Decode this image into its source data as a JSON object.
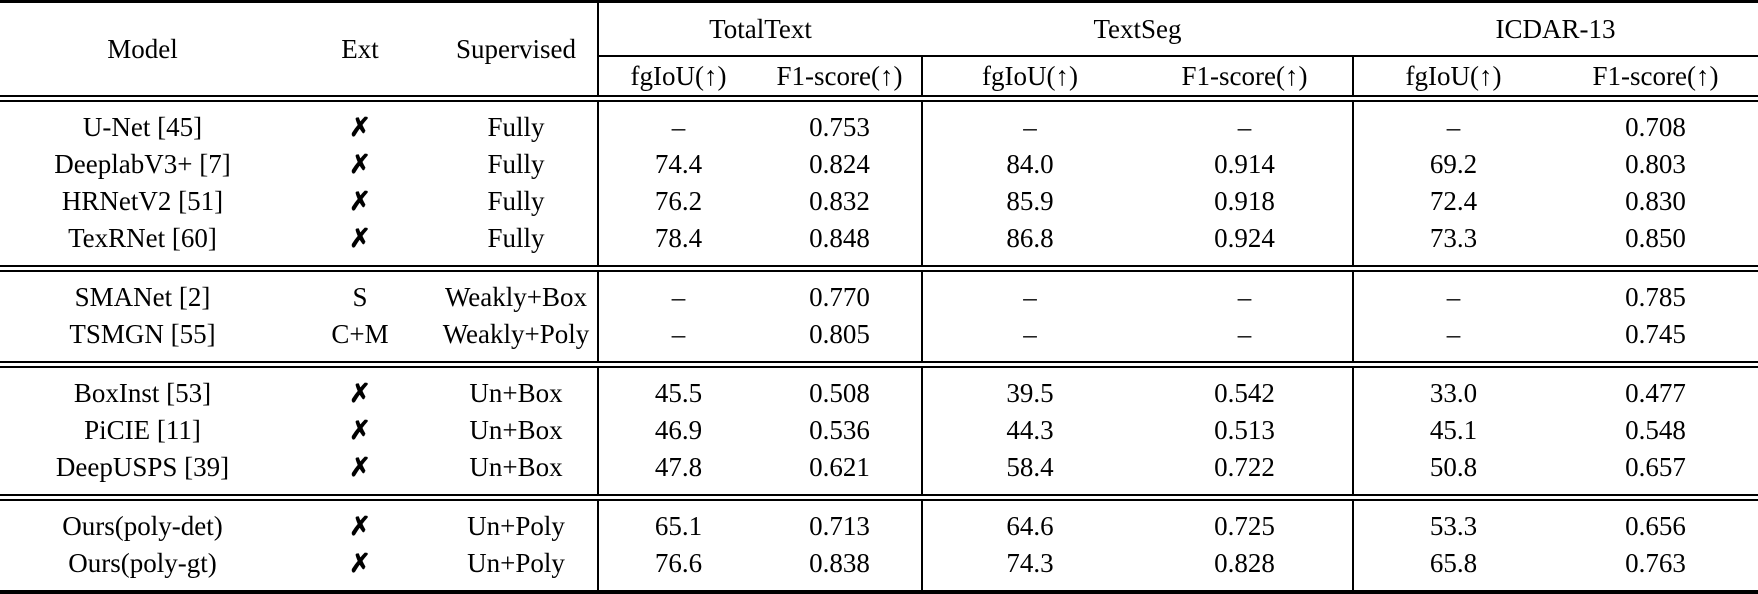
{
  "table": {
    "title_columns": {
      "model": "Model",
      "ext": "Ext",
      "supervised": "Supervised"
    },
    "groups": [
      {
        "label": "TotalText",
        "metrics": [
          "fgIoU(↑)",
          "F1-score(↑)"
        ]
      },
      {
        "label": "TextSeg",
        "metrics": [
          "fgIoU(↑)",
          "F1-score(↑)"
        ]
      },
      {
        "label": "ICDAR-13",
        "metrics": [
          "fgIoU(↑)",
          "F1-score(↑)"
        ]
      }
    ],
    "metric_headers": [
      "fgIoU(↑)",
      "F1-score(↑)",
      "fgIoU(↑)",
      "F1-score(↑)",
      "fgIoU(↑)",
      "F1-score(↑)"
    ],
    "cross_mark": "✗",
    "dash": "–",
    "sections": [
      {
        "rows": [
          {
            "model": "U-Net [45]",
            "ext": "✗",
            "supervised": "Fully",
            "values": [
              "–",
              "0.753",
              "–",
              "–",
              "–",
              "0.708"
            ]
          },
          {
            "model": "DeeplabV3+ [7]",
            "ext": "✗",
            "supervised": "Fully",
            "values": [
              "74.4",
              "0.824",
              "84.0",
              "0.914",
              "69.2",
              "0.803"
            ]
          },
          {
            "model": "HRNetV2 [51]",
            "ext": "✗",
            "supervised": "Fully",
            "values": [
              "76.2",
              "0.832",
              "85.9",
              "0.918",
              "72.4",
              "0.830"
            ]
          },
          {
            "model": "TexRNet [60]",
            "ext": "✗",
            "supervised": "Fully",
            "values": [
              "78.4",
              "0.848",
              "86.8",
              "0.924",
              "73.3",
              "0.850"
            ]
          }
        ]
      },
      {
        "rows": [
          {
            "model": "SMANet [2]",
            "ext": "S",
            "supervised": "Weakly+Box",
            "values": [
              "–",
              "0.770",
              "–",
              "–",
              "–",
              "0.785"
            ]
          },
          {
            "model": "TSMGN [55]",
            "ext": "C+M",
            "supervised": "Weakly+Poly",
            "values": [
              "–",
              "0.805",
              "–",
              "–",
              "–",
              "0.745"
            ]
          }
        ]
      },
      {
        "rows": [
          {
            "model": "BoxInst [53]",
            "ext": "✗",
            "supervised": "Un+Box",
            "values": [
              "45.5",
              "0.508",
              "39.5",
              "0.542",
              "33.0",
              "0.477"
            ]
          },
          {
            "model": "PiCIE [11]",
            "ext": "✗",
            "supervised": "Un+Box",
            "values": [
              "46.9",
              "0.536",
              "44.3",
              "0.513",
              "45.1",
              "0.548"
            ]
          },
          {
            "model": "DeepUSPS [39]",
            "ext": "✗",
            "supervised": "Un+Box",
            "values": [
              "47.8",
              "0.621",
              "58.4",
              "0.722",
              "50.8",
              "0.657"
            ]
          }
        ]
      },
      {
        "rows": [
          {
            "model": "Ours(poly-det)",
            "ext": "✗",
            "supervised": "Un+Poly",
            "values": [
              "65.1",
              "0.713",
              "64.6",
              "0.725",
              "53.3",
              "0.656"
            ]
          },
          {
            "model": "Ours(poly-gt)",
            "ext": "✗",
            "supervised": "Un+Poly",
            "values": [
              "76.6",
              "0.838",
              "74.3",
              "0.828",
              "65.8",
              "0.763"
            ]
          }
        ]
      }
    ]
  },
  "colors": {
    "text": "#000000",
    "background": "#ffffff",
    "rule": "#000000"
  }
}
